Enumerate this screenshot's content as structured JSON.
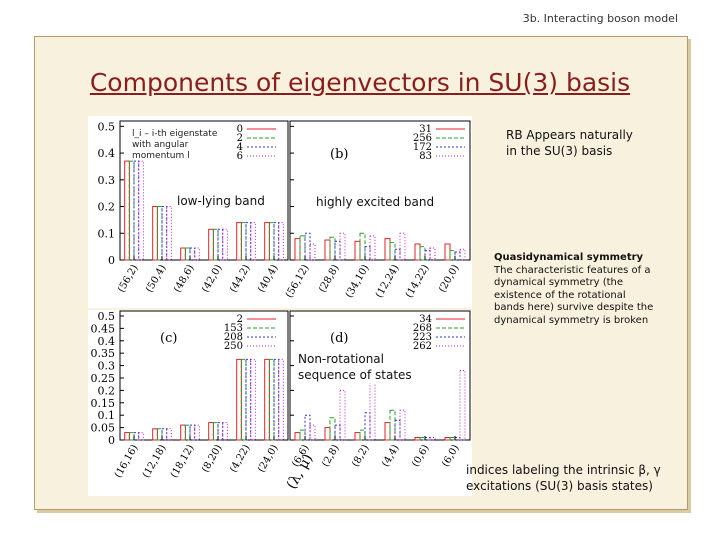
{
  "header": "3b. Interacting boson model",
  "title": "Components of eigenvectors in SU(3) basis",
  "notes": {
    "legend_caption": [
      "l_i – i-th eigenstate",
      "with angular",
      "momentum l"
    ],
    "low_lying": "low-lying band",
    "highly_excited": "highly excited band",
    "rb": [
      "RB Appears naturally",
      "in the SU(3) basis"
    ],
    "quasi_title": "Quasidynamical symmetry",
    "quasi_body": [
      "The characteristic features of a",
      "dynamical symmetry (the",
      "existence of the rotational",
      "bands here) survive despite the",
      "dynamical symmetry is broken"
    ],
    "non_rot": [
      "Non-rotational",
      "sequence of states"
    ],
    "indices": [
      "indices labeling the intrinsic β, γ",
      "excitations (SU(3) basis states)"
    ]
  },
  "colors": {
    "l0": "#e0202a",
    "l2": "#2aa02a",
    "l4": "#3535c8",
    "l6": "#c020c0"
  },
  "chart_data": [
    {
      "type": "bar",
      "panel": "a",
      "label": "",
      "categories": [
        "(56,2)",
        "(50,4)",
        "(48,6)",
        "(42,0)",
        "(44,2)",
        "(40,4)"
      ],
      "legend_labels": [
        "0",
        "2",
        "4",
        "6"
      ],
      "series": [
        {
          "name": "0",
          "values": [
            0.37,
            0.2,
            0.045,
            0.115,
            0.14,
            0.14
          ]
        },
        {
          "name": "2",
          "values": [
            0.37,
            0.2,
            0.045,
            0.115,
            0.14,
            0.14
          ]
        },
        {
          "name": "4",
          "values": [
            0.37,
            0.2,
            0.045,
            0.115,
            0.14,
            0.14
          ]
        },
        {
          "name": "6",
          "values": [
            0.37,
            0.2,
            0.045,
            0.115,
            0.14,
            0.14
          ]
        }
      ],
      "yticks": [
        "0",
        "0.1",
        "0.2",
        "0.3",
        "0.4",
        "0.5"
      ],
      "ylim": [
        0,
        0.52
      ]
    },
    {
      "type": "bar",
      "panel": "b",
      "label": "(b)",
      "categories": [
        "(56,12)",
        "(28,8)",
        "(34,10)",
        "(12,24)",
        "(14,22)",
        "(20,0)"
      ],
      "legend_labels": [
        "31",
        "256",
        "172",
        "83"
      ],
      "series": [
        {
          "name": "31",
          "values": [
            0.08,
            0.075,
            0.07,
            0.08,
            0.06,
            0.06
          ]
        },
        {
          "name": "256",
          "values": [
            0.09,
            0.085,
            0.1,
            0.065,
            0.05,
            0.035
          ]
        },
        {
          "name": "172",
          "values": [
            0.1,
            0.07,
            0.05,
            0.04,
            0.035,
            0.03
          ]
        },
        {
          "name": "83",
          "values": [
            0.06,
            0.1,
            0.09,
            0.1,
            0.045,
            0.04
          ]
        }
      ],
      "yticks": [],
      "ylim": [
        0,
        0.52
      ]
    },
    {
      "type": "bar",
      "panel": "c",
      "label": "(c)",
      "categories": [
        "(16,16)",
        "(12,18)",
        "(18,12)",
        "(8,20)",
        "(4,22)",
        "(24,0)"
      ],
      "legend_labels": [
        "2",
        "153",
        "208",
        "250"
      ],
      "series": [
        {
          "name": "2",
          "values": [
            0.03,
            0.045,
            0.06,
            0.07,
            0.325,
            0.325
          ]
        },
        {
          "name": "153",
          "values": [
            0.03,
            0.045,
            0.06,
            0.07,
            0.325,
            0.325
          ]
        },
        {
          "name": "208",
          "values": [
            0.03,
            0.045,
            0.06,
            0.07,
            0.325,
            0.325
          ]
        },
        {
          "name": "250",
          "values": [
            0.03,
            0.045,
            0.06,
            0.07,
            0.325,
            0.325
          ]
        }
      ],
      "yticks": [
        "0",
        "0.05",
        "0.1",
        "0.15",
        "0.2",
        "0.25",
        "0.3",
        "0.35",
        "0.4",
        "0.45",
        "0.5"
      ],
      "ylim": [
        0,
        0.52
      ],
      "xlabel": "(λ, μ)"
    },
    {
      "type": "bar",
      "panel": "d",
      "label": "(d)",
      "categories": [
        "(6,6)",
        "(2,8)",
        "(8,2)",
        "(4,4)",
        "(0,6)",
        "(6,0)"
      ],
      "legend_labels": [
        "34",
        "268",
        "223",
        "262"
      ],
      "series": [
        {
          "name": "34",
          "values": [
            0.03,
            0.05,
            0.03,
            0.07,
            0.01,
            0.01
          ]
        },
        {
          "name": "268",
          "values": [
            0.04,
            0.09,
            0.04,
            0.12,
            0.01,
            0.01
          ]
        },
        {
          "name": "223",
          "values": [
            0.1,
            0.06,
            0.11,
            0.08,
            0.01,
            0.01
          ]
        },
        {
          "name": "262",
          "values": [
            0.06,
            0.2,
            0.3,
            0.12,
            0.01,
            0.28
          ]
        }
      ],
      "yticks": [],
      "ylim": [
        0,
        0.52
      ]
    }
  ]
}
